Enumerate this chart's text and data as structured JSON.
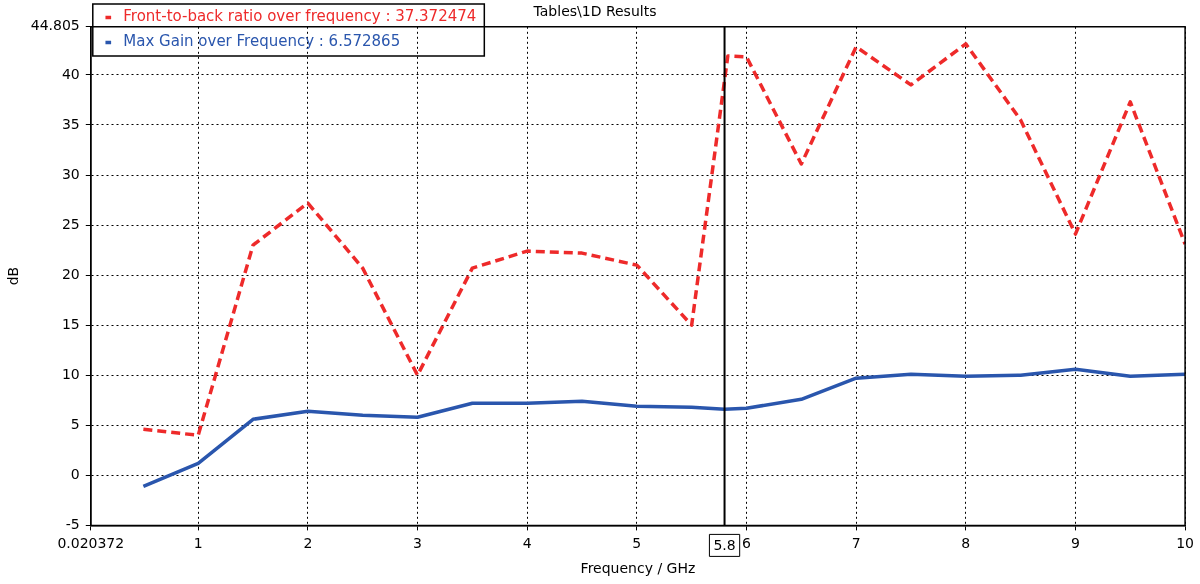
{
  "chart_data": {
    "type": "line",
    "title": "Tables\\1D Results",
    "xlabel": "Frequency / GHz",
    "ylabel": "dB",
    "x": [
      0.5,
      1,
      1.5,
      2,
      2.5,
      3,
      3.5,
      4,
      4.5,
      5,
      5.5,
      5.8,
      6,
      6.5,
      7,
      7.5,
      8,
      8.5,
      9,
      9.5,
      10
    ],
    "series": [
      {
        "name": "Front-to-back ratio over frequency : 37.372474",
        "color": "#ee2a2a",
        "line_style": "dashed",
        "x": [
          0.5,
          1,
          1.5,
          2,
          2.5,
          3,
          3.5,
          4,
          4.5,
          5,
          5.5,
          5.83,
          6,
          6.5,
          7,
          7.5,
          8,
          8.5,
          9,
          9.5,
          10
        ],
        "values": [
          4.6,
          4.0,
          23.0,
          27.2,
          20.7,
          10.0,
          20.7,
          22.4,
          22.2,
          21.0,
          15.0,
          41.9,
          41.8,
          31.1,
          42.8,
          39.0,
          43.1,
          35.5,
          24.1,
          37.3,
          23.1
        ]
      },
      {
        "name": "Max Gain over Frequency : 6.572865",
        "color": "#2a56ad",
        "line_style": "solid",
        "values": [
          -1.1,
          1.2,
          5.6,
          6.4,
          6.0,
          5.8,
          7.2,
          7.2,
          7.4,
          6.9,
          6.8,
          6.6,
          6.7,
          7.6,
          9.7,
          10.1,
          9.9,
          10.0,
          10.6,
          9.9,
          10.1
        ]
      }
    ],
    "xlim": [
      0.020372,
      10
    ],
    "xticks": [
      0.020372,
      1,
      2,
      3,
      4,
      5,
      6,
      7,
      8,
      9,
      10
    ],
    "ylim": [
      -5,
      44.805
    ],
    "yticks": [
      -5,
      0,
      5,
      10,
      15,
      20,
      25,
      30,
      35,
      40,
      44.805
    ],
    "ref_lines": [
      {
        "axis": "x",
        "value": 5.8,
        "label": "5.8",
        "color": "#000000"
      }
    ],
    "grid": true,
    "legend": "top left",
    "marker": "none"
  }
}
